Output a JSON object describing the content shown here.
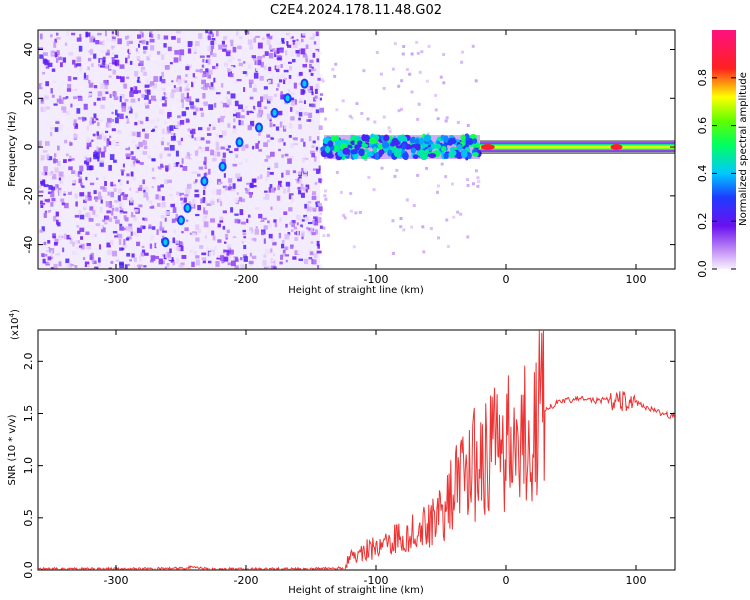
{
  "title": "C2E4.2024.178.11.48.G02",
  "colors": {
    "snr_line": "#ee3333",
    "spectrogram_noise": "#7a1fd6",
    "spectrogram_light": "#e6d6f7"
  },
  "colorbar": {
    "label": "Normalized spectral amplitude",
    "ticks": [
      "0.0",
      "0.2",
      "0.4",
      "0.6",
      "0.8"
    ],
    "tick_values": [
      0.0,
      0.2,
      0.4,
      0.6,
      0.8
    ],
    "range": [
      0,
      1
    ],
    "colormap": "gist_rainbow-like (violet→blue→cyan→green→yellow→red→magenta)"
  },
  "chart_data": [
    {
      "type": "heatmap",
      "name": "spectrogram",
      "xlabel": "Height of straight line (km)",
      "ylabel": "Frequency (Hz)",
      "xlim": [
        -360,
        130
      ],
      "ylim": [
        -50,
        48
      ],
      "xticks": [
        -300,
        -200,
        -100,
        0,
        100
      ],
      "xtick_labels": [
        "-300",
        "-200",
        "-100",
        "0",
        "100"
      ],
      "yticks": [
        -40,
        -20,
        0,
        20,
        40
      ],
      "ytick_labels": [
        "-40",
        "-20",
        "0",
        "20",
        "40"
      ],
      "noise_region_x": [
        -360,
        -143
      ],
      "doppler_trace": [
        {
          "x": -262,
          "y": -39
        },
        {
          "x": -250,
          "y": -30
        },
        {
          "x": -245,
          "y": -25
        },
        {
          "x": -232,
          "y": -14
        },
        {
          "x": -218,
          "y": -8
        },
        {
          "x": -205,
          "y": 2
        },
        {
          "x": -190,
          "y": 8
        },
        {
          "x": -178,
          "y": 14
        },
        {
          "x": -168,
          "y": 20
        },
        {
          "x": -155,
          "y": 26
        }
      ],
      "carrier_band": {
        "x_start": -140,
        "x_end": 130,
        "center_hz": 0
      }
    },
    {
      "type": "line",
      "name": "snr",
      "xlabel": "Height of straight line (km)",
      "ylabel": "SNR (10 * v/v)",
      "y_multiplier_label": "(x10",
      "y_multiplier_exp": "4",
      "xlim": [
        -360,
        130
      ],
      "ylim": [
        0,
        2.3
      ],
      "xticks": [
        -300,
        -200,
        -100,
        0,
        100
      ],
      "xtick_labels": [
        "-300",
        "-200",
        "-100",
        "0",
        "100"
      ],
      "yticks": [
        0.0,
        0.5,
        1.0,
        1.5,
        2.0
      ],
      "ytick_labels": [
        "0.0",
        "0.5",
        "1.0",
        "1.5",
        "2.0"
      ],
      "series": [
        {
          "points": [
            [
              -360,
              0.01
            ],
            [
              -300,
              0.01
            ],
            [
              -250,
              0.015
            ],
            [
              -240,
              0.03
            ],
            [
              -230,
              0.01
            ],
            [
              -200,
              0.01
            ],
            [
              -150,
              0.01
            ],
            [
              -125,
              0.02
            ],
            [
              -120,
              0.12
            ],
            [
              -110,
              0.18
            ],
            [
              -100,
              0.22
            ],
            [
              -90,
              0.28
            ],
            [
              -80,
              0.32
            ],
            [
              -70,
              0.38
            ],
            [
              -60,
              0.45
            ],
            [
              -50,
              0.55
            ],
            [
              -40,
              0.75
            ],
            [
              -30,
              0.95
            ],
            [
              -20,
              1.05
            ],
            [
              -10,
              1.15
            ],
            [
              0,
              1.2
            ],
            [
              10,
              1.3
            ],
            [
              20,
              1.42
            ],
            [
              30,
              1.55
            ],
            [
              40,
              1.6
            ],
            [
              50,
              1.63
            ],
            [
              60,
              1.64
            ],
            [
              70,
              1.62
            ],
            [
              80,
              1.63
            ],
            [
              90,
              1.62
            ],
            [
              100,
              1.6
            ],
            [
              110,
              1.55
            ],
            [
              120,
              1.5
            ],
            [
              130,
              1.47
            ]
          ]
        }
      ]
    }
  ]
}
